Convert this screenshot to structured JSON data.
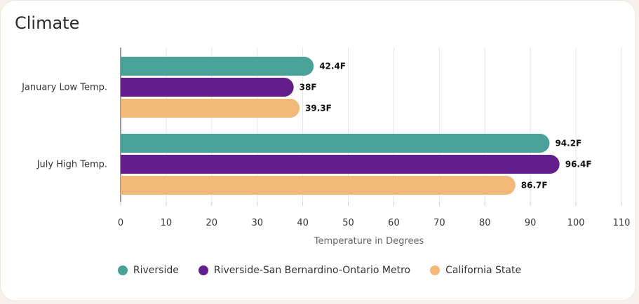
{
  "card": {
    "title": "Climate"
  },
  "chart_data": {
    "type": "bar",
    "orientation": "horizontal",
    "title": "Climate",
    "categories": [
      "January Low Temp.",
      "July High Temp."
    ],
    "series": [
      {
        "name": "Riverside",
        "values": [
          42.4,
          94.2
        ],
        "labels": [
          "42.4F",
          "94.2F"
        ],
        "color": "#4aa197"
      },
      {
        "name": "Riverside-San Bernardino-Ontario Metro",
        "values": [
          38,
          96.4
        ],
        "labels": [
          "38F",
          "96.4F"
        ],
        "color": "#641e8c"
      },
      {
        "name": "California State",
        "values": [
          39.3,
          86.7
        ],
        "labels": [
          "39.3F",
          "86.7F"
        ],
        "color": "#f2b878"
      }
    ],
    "xlabel": "Temperature in Degrees",
    "ylabel": "",
    "xlim": [
      0,
      110
    ],
    "xticks": [
      0,
      10,
      20,
      30,
      40,
      50,
      60,
      70,
      80,
      90,
      100,
      110
    ],
    "grid": "vertical",
    "legend": "bottom"
  }
}
